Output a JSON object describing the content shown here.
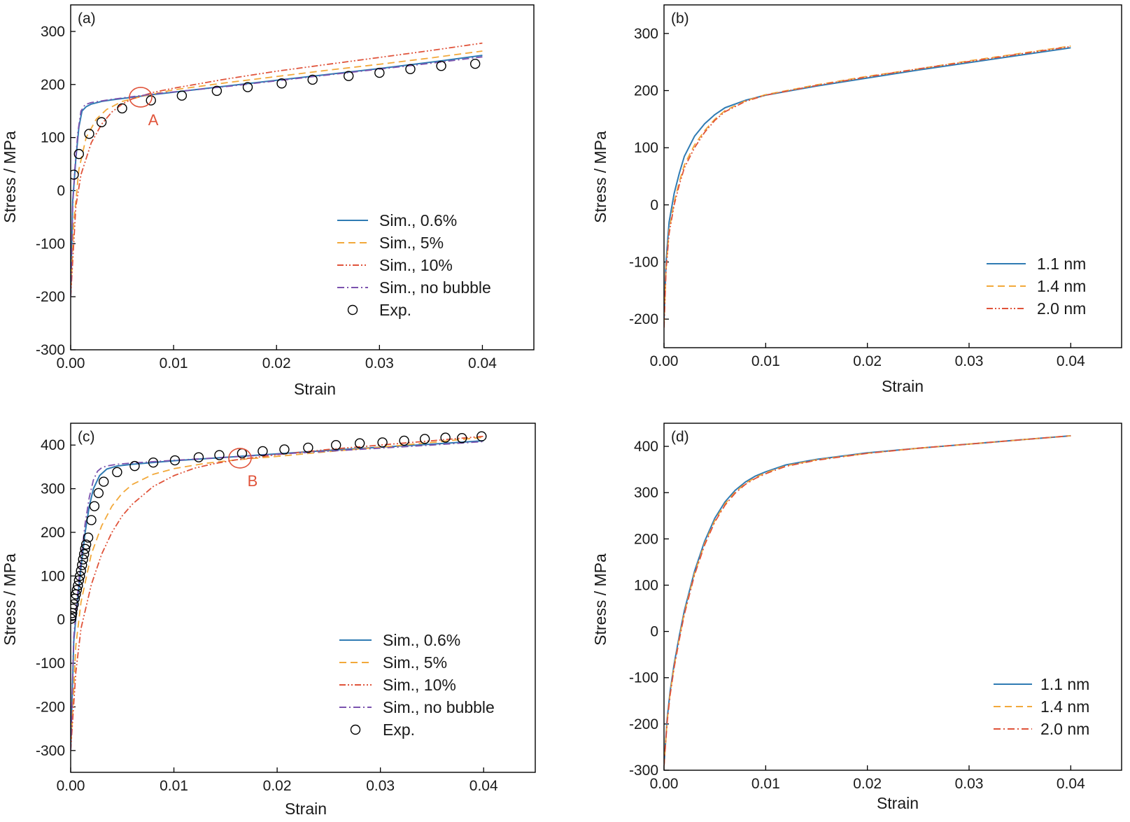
{
  "chart_data": [
    {
      "type": "line",
      "panel_label": "(a)",
      "xlabel": "Strain",
      "ylabel": "Stress / MPa",
      "xlim": [
        0,
        0.045
      ],
      "ylim": [
        -300,
        350
      ],
      "xticks": [
        "0.00",
        "0.01",
        "0.02",
        "0.03",
        "0.04"
      ],
      "yticks": [
        "-300",
        "-200",
        "-100",
        "0",
        "100",
        "200",
        "300"
      ],
      "legend_position": "bottom-right",
      "annotation": {
        "label": "A",
        "x": 0.0068,
        "y": 176,
        "color": "#e0533a"
      },
      "series": [
        {
          "name": "Sim., 0.6%",
          "style": "solid",
          "color": "#2f7bb3",
          "x": [
            0,
            0.0002,
            0.0005,
            0.0008,
            0.0011,
            0.0015,
            0.002,
            0.003,
            0.004,
            0.006,
            0.008,
            0.012,
            0.016,
            0.02,
            0.025,
            0.03,
            0.035,
            0.04
          ],
          "y": [
            -200,
            -20,
            60,
            120,
            150,
            158,
            163,
            168,
            171,
            176,
            181,
            190,
            199,
            208,
            219,
            230,
            242,
            255
          ]
        },
        {
          "name": "Sim., 5%",
          "style": "dash",
          "color": "#f2a93b",
          "x": [
            0,
            0.0003,
            0.0008,
            0.0015,
            0.0025,
            0.0035,
            0.005,
            0.007,
            0.01,
            0.015,
            0.02,
            0.025,
            0.03,
            0.035,
            0.04
          ],
          "y": [
            -200,
            -60,
            40,
            100,
            135,
            153,
            168,
            178,
            190,
            203,
            215,
            227,
            238,
            250,
            263
          ]
        },
        {
          "name": "Sim., 10%",
          "style": "dashdotdot",
          "color": "#e0533a",
          "x": [
            0,
            0.0005,
            0.001,
            0.002,
            0.003,
            0.004,
            0.005,
            0.006,
            0.008,
            0.01,
            0.015,
            0.02,
            0.025,
            0.03,
            0.035,
            0.04
          ],
          "y": [
            -200,
            -30,
            30,
            90,
            125,
            148,
            163,
            173,
            185,
            193,
            210,
            225,
            238,
            251,
            264,
            278
          ]
        },
        {
          "name": "Sim., no bubble",
          "style": "dashdot",
          "color": "#7b52ae",
          "x": [
            0,
            0.0002,
            0.0004,
            0.0007,
            0.001,
            0.0014,
            0.002,
            0.003,
            0.004,
            0.006,
            0.008,
            0.012,
            0.016,
            0.02,
            0.025,
            0.03,
            0.035,
            0.04
          ],
          "y": [
            -200,
            -30,
            40,
            110,
            150,
            162,
            166,
            169,
            172,
            177,
            182,
            190,
            198,
            207,
            218,
            229,
            240,
            252
          ]
        },
        {
          "name": "Exp.",
          "style": "marker",
          "color": "#000000",
          "x": [
            0.0003,
            0.0008,
            0.0018,
            0.003,
            0.005,
            0.0078,
            0.0108,
            0.0142,
            0.0172,
            0.0205,
            0.0235,
            0.027,
            0.03,
            0.033,
            0.036,
            0.0393
          ],
          "y": [
            30,
            69,
            107,
            129,
            155,
            170,
            179,
            188,
            195,
            202,
            209,
            216,
            222,
            229,
            235,
            239
          ]
        }
      ]
    },
    {
      "type": "line",
      "panel_label": "(b)",
      "xlabel": "Strain",
      "ylabel": "Stress / MPa",
      "xlim": [
        0,
        0.045
      ],
      "ylim": [
        -250,
        350
      ],
      "xticks": [
        "0.00",
        "0.01",
        "0.02",
        "0.03",
        "0.04"
      ],
      "yticks": [
        "-200",
        "-100",
        "0",
        "100",
        "200",
        "300"
      ],
      "legend_position": "bottom-right",
      "series": [
        {
          "name": "1.1 nm",
          "style": "solid",
          "color": "#2f7bb3",
          "x": [
            0,
            0.0002,
            0.0005,
            0.001,
            0.0015,
            0.002,
            0.003,
            0.004,
            0.005,
            0.006,
            0.008,
            0.01,
            0.015,
            0.02,
            0.025,
            0.03,
            0.035,
            0.04
          ],
          "y": [
            -200,
            -100,
            -30,
            20,
            55,
            85,
            120,
            142,
            158,
            170,
            183,
            192,
            208,
            222,
            236,
            249,
            262,
            275
          ]
        },
        {
          "name": "1.4 nm",
          "style": "dash",
          "color": "#f2a93b",
          "x": [
            0,
            0.0002,
            0.0005,
            0.001,
            0.0015,
            0.002,
            0.003,
            0.004,
            0.005,
            0.006,
            0.008,
            0.01,
            0.015,
            0.02,
            0.025,
            0.03,
            0.035,
            0.04
          ],
          "y": [
            -210,
            -110,
            -45,
            5,
            40,
            70,
            105,
            130,
            150,
            165,
            182,
            193,
            210,
            225,
            238,
            252,
            265,
            278
          ]
        },
        {
          "name": "2.0 nm",
          "style": "dashdotdot",
          "color": "#e0533a",
          "x": [
            0,
            0.0002,
            0.0005,
            0.001,
            0.0015,
            0.002,
            0.003,
            0.004,
            0.005,
            0.006,
            0.008,
            0.01,
            0.015,
            0.02,
            0.025,
            0.03,
            0.035,
            0.04
          ],
          "y": [
            -215,
            -115,
            -50,
            0,
            35,
            65,
            100,
            127,
            148,
            163,
            181,
            192,
            209,
            224,
            238,
            251,
            264,
            277
          ]
        }
      ]
    },
    {
      "type": "line",
      "panel_label": "(c)",
      "xlabel": "Strain",
      "ylabel": "Stress / MPa",
      "xlim": [
        0,
        0.045
      ],
      "ylim": [
        -350,
        450
      ],
      "xticks": [
        "0.00",
        "0.01",
        "0.02",
        "0.03",
        "0.04"
      ],
      "yticks": [
        "-300",
        "-200",
        "-100",
        "0",
        "100",
        "200",
        "300",
        "400"
      ],
      "legend_position": "bottom-right",
      "annotation": {
        "label": "B",
        "x": 0.0164,
        "y": 370,
        "color": "#e0533a"
      },
      "series": [
        {
          "name": "Sim., 0.6%",
          "style": "solid",
          "color": "#2f7bb3",
          "x": [
            0,
            0.0003,
            0.0006,
            0.001,
            0.0014,
            0.0018,
            0.0022,
            0.0028,
            0.0035,
            0.0045,
            0.006,
            0.008,
            0.01,
            0.015,
            0.02,
            0.025,
            0.03,
            0.035,
            0.04
          ],
          "y": [
            -300,
            -50,
            30,
            120,
            200,
            260,
            300,
            330,
            345,
            352,
            356,
            360,
            364,
            372,
            380,
            388,
            395,
            402,
            410
          ]
        },
        {
          "name": "Sim., 5%",
          "style": "dash",
          "color": "#f2a93b",
          "x": [
            0,
            0.0005,
            0.001,
            0.002,
            0.003,
            0.004,
            0.005,
            0.006,
            0.008,
            0.01,
            0.013,
            0.016,
            0.02,
            0.025,
            0.03,
            0.035,
            0.04
          ],
          "y": [
            -300,
            -60,
            40,
            150,
            215,
            260,
            290,
            310,
            333,
            346,
            358,
            366,
            374,
            385,
            395,
            406,
            418
          ]
        },
        {
          "name": "Sim., 10%",
          "style": "dashdotdot",
          "color": "#e0533a",
          "x": [
            0,
            0.0005,
            0.001,
            0.002,
            0.003,
            0.004,
            0.005,
            0.006,
            0.008,
            0.01,
            0.012,
            0.014,
            0.016,
            0.02,
            0.025,
            0.03,
            0.035,
            0.04
          ],
          "y": [
            -300,
            -120,
            -20,
            80,
            150,
            200,
            238,
            265,
            305,
            330,
            347,
            358,
            366,
            378,
            390,
            400,
            410,
            420
          ]
        },
        {
          "name": "Sim., no bubble",
          "style": "dashdot",
          "color": "#7b52ae",
          "x": [
            0,
            0.0003,
            0.0006,
            0.001,
            0.0014,
            0.0018,
            0.0022,
            0.0026,
            0.003,
            0.0035,
            0.0045,
            0.006,
            0.008,
            0.01,
            0.015,
            0.02,
            0.025,
            0.03,
            0.035,
            0.04
          ],
          "y": [
            -300,
            -40,
            40,
            140,
            220,
            280,
            320,
            340,
            348,
            352,
            356,
            359,
            362,
            365,
            372,
            379,
            386,
            393,
            400,
            408
          ]
        },
        {
          "name": "Exp.",
          "style": "marker",
          "color": "#000000",
          "x": [
            5e-05,
            0.0001,
            0.00015,
            0.0002,
            0.0003,
            0.0004,
            0.0005,
            0.0006,
            0.0007,
            0.0008,
            0.0009,
            0.001,
            0.0011,
            0.0012,
            0.0013,
            0.0014,
            0.0015,
            0.0017,
            0.002,
            0.0023,
            0.0027,
            0.0032,
            0.0045,
            0.0062,
            0.008,
            0.0101,
            0.0124,
            0.0144,
            0.0166,
            0.0186,
            0.0207,
            0.023,
            0.0257,
            0.028,
            0.0302,
            0.0323,
            0.0343,
            0.0363,
            0.0379,
            0.0398
          ],
          "y": [
            2,
            8,
            15,
            25,
            35,
            48,
            58,
            68,
            78,
            90,
            100,
            112,
            125,
            138,
            150,
            162,
            172,
            188,
            228,
            260,
            290,
            316,
            338,
            352,
            360,
            365,
            372,
            377,
            381,
            386,
            390,
            394,
            400,
            404,
            406,
            410,
            414,
            417,
            416,
            420
          ]
        }
      ]
    },
    {
      "type": "line",
      "panel_label": "(d)",
      "xlabel": "Strain",
      "ylabel": "Stress / MPa",
      "xlim": [
        0,
        0.045
      ],
      "ylim": [
        -300,
        450
      ],
      "xticks": [
        "0.00",
        "0.01",
        "0.02",
        "0.03",
        "0.04"
      ],
      "yticks": [
        "-300",
        "-200",
        "-100",
        "0",
        "100",
        "200",
        "300",
        "400"
      ],
      "legend_position": "bottom-right",
      "series": [
        {
          "name": "1.1 nm",
          "style": "solid",
          "color": "#2f7bb3",
          "x": [
            0,
            0.0003,
            0.0006,
            0.001,
            0.0015,
            0.002,
            0.003,
            0.004,
            0.005,
            0.006,
            0.007,
            0.008,
            0.009,
            0.01,
            0.012,
            0.015,
            0.02,
            0.025,
            0.03,
            0.035,
            0.04
          ],
          "y": [
            -290,
            -190,
            -130,
            -70,
            -10,
            45,
            130,
            195,
            245,
            280,
            305,
            323,
            336,
            345,
            360,
            372,
            386,
            396,
            405,
            414,
            423
          ]
        },
        {
          "name": "1.4 nm",
          "style": "dash",
          "color": "#f2a93b",
          "x": [
            0,
            0.0003,
            0.0006,
            0.001,
            0.0015,
            0.002,
            0.003,
            0.004,
            0.005,
            0.006,
            0.007,
            0.008,
            0.009,
            0.01,
            0.012,
            0.015,
            0.02,
            0.025,
            0.03,
            0.035,
            0.04
          ],
          "y": [
            -290,
            -195,
            -135,
            -75,
            -15,
            40,
            125,
            190,
            240,
            276,
            301,
            320,
            333,
            343,
            358,
            371,
            385,
            396,
            405,
            414,
            423
          ]
        },
        {
          "name": "2.0 nm",
          "style": "dashdot",
          "color": "#e0533a",
          "x": [
            0,
            0.0003,
            0.0006,
            0.001,
            0.0015,
            0.002,
            0.003,
            0.004,
            0.005,
            0.006,
            0.007,
            0.008,
            0.009,
            0.01,
            0.012,
            0.015,
            0.02,
            0.025,
            0.03,
            0.035,
            0.04
          ],
          "y": [
            -290,
            -198,
            -138,
            -78,
            -18,
            37,
            122,
            187,
            237,
            273,
            299,
            318,
            331,
            341,
            357,
            370,
            385,
            396,
            405,
            414,
            423
          ]
        }
      ]
    }
  ]
}
